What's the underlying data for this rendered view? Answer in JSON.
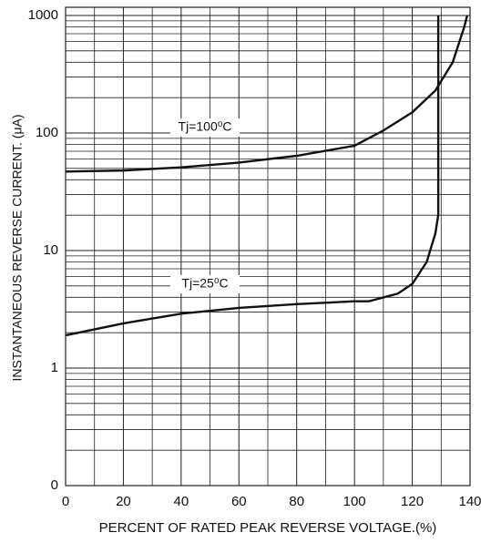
{
  "chart_data": {
    "type": "line",
    "xlabel": "PERCENT OF RATED PEAK REVERSE VOLTAGE.(%)",
    "ylabel": "INSTANTANEOUS REVERSE CURRENT. (μA)",
    "xlim": [
      0,
      140
    ],
    "xticks": [
      0,
      20,
      40,
      60,
      80,
      100,
      120,
      140
    ],
    "x_minor_ticks": [
      10,
      30,
      50,
      70,
      90,
      110,
      130
    ],
    "ylim": [
      0.1,
      1000
    ],
    "y_log": true,
    "yticks": [
      {
        "value": 0.1,
        "label": "0"
      },
      1,
      10,
      100,
      1000
    ],
    "y_minor_ticks": [
      0.2,
      0.3,
      0.4,
      0.5,
      0.6,
      0.7,
      0.8,
      0.9,
      2,
      3,
      4,
      5,
      6,
      7,
      8,
      9,
      20,
      30,
      40,
      50,
      60,
      70,
      80,
      90,
      200,
      300,
      400,
      500,
      600,
      700,
      800,
      900
    ],
    "grid": true,
    "series": [
      {
        "name": "Tj=100⁰C",
        "color": "#111111",
        "x": [
          0,
          20,
          40,
          60,
          80,
          100,
          110,
          120,
          128,
          134,
          138,
          139
        ],
        "values": [
          47,
          48,
          51,
          56,
          64,
          78,
          105,
          150,
          230,
          400,
          800,
          1000
        ]
      },
      {
        "name": "Tj=25⁰C",
        "color": "#111111",
        "x": [
          0,
          20,
          40,
          60,
          80,
          100,
          105,
          115,
          120,
          125,
          128,
          129,
          129
        ],
        "values": [
          1.9,
          2.4,
          2.9,
          3.25,
          3.5,
          3.7,
          3.7,
          4.3,
          5.2,
          8,
          14,
          20,
          1000
        ]
      }
    ]
  }
}
